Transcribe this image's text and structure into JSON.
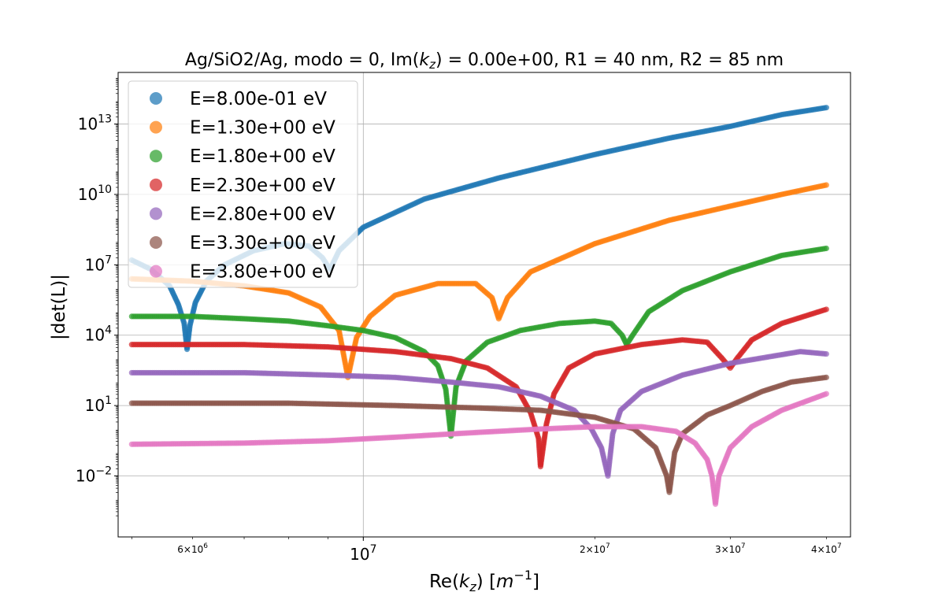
{
  "chart_data": {
    "type": "scatter",
    "title": {
      "prefix": "Ag/SiO2/Ag, modo = 0, Im(",
      "var_main": "k",
      "var_sub": "z",
      "suffix": ") = 0.00e+00, R1 = 40 nm, R2 = 85 nm"
    },
    "xlabel": {
      "prefix": "Re(",
      "var_main": "k",
      "var_sub": "z",
      "mid": ") [",
      "unit_main": "m",
      "unit_sup": "−1",
      "suffix": "]"
    },
    "ylabel": "|det(L)|",
    "xscale": "log",
    "yscale": "log",
    "xlim": [
      4800000,
      43000000
    ],
    "ylim_log10": [
      -4.6,
      15.2
    ],
    "grid": "major",
    "legend_position": "upper-left",
    "x_ticks": [
      {
        "value": 6000000,
        "mant": "6",
        "exp": "6",
        "major": false
      },
      {
        "value": 10000000,
        "mant": "",
        "exp": "7",
        "major": true
      },
      {
        "value": 20000000,
        "mant": "2",
        "exp": "7",
        "major": false
      },
      {
        "value": 30000000,
        "mant": "3",
        "exp": "7",
        "major": false
      },
      {
        "value": 40000000,
        "mant": "4",
        "exp": "7",
        "major": false
      }
    ],
    "y_ticks": [
      {
        "exp": "13",
        "log": 13
      },
      {
        "exp": "10",
        "log": 10
      },
      {
        "exp": "7",
        "log": 7
      },
      {
        "exp": "4",
        "log": 4
      },
      {
        "exp": "1",
        "log": 1
      },
      {
        "exp": "−2",
        "log": -2
      }
    ],
    "series": [
      {
        "name": "E=8.00e-01 eV",
        "color": "#1f77b4",
        "points": [
          [
            5000000,
            7.2
          ],
          [
            5300000,
            6.8
          ],
          [
            5600000,
            6.1
          ],
          [
            5750000,
            5.3
          ],
          [
            5850000,
            4.5
          ],
          [
            5900000,
            3.4
          ],
          [
            5950000,
            4.4
          ],
          [
            6050000,
            5.4
          ],
          [
            6250000,
            6.3
          ],
          [
            6600000,
            7.0
          ],
          [
            7200000,
            7.6
          ],
          [
            7900000,
            7.9
          ],
          [
            8500000,
            7.8
          ],
          [
            8850000,
            7.3
          ],
          [
            9050000,
            6.8
          ],
          [
            9300000,
            7.6
          ],
          [
            10000000,
            8.6
          ],
          [
            12000000,
            9.8
          ],
          [
            15000000,
            10.7
          ],
          [
            20000000,
            11.7
          ],
          [
            25000000,
            12.4
          ],
          [
            30000000,
            12.9
          ],
          [
            35000000,
            13.4
          ],
          [
            40000000,
            13.7
          ]
        ]
      },
      {
        "name": "E=1.30e+00 eV",
        "color": "#ff7f0e",
        "points": [
          [
            5000000,
            6.4
          ],
          [
            6000000,
            6.3
          ],
          [
            7000000,
            6.1
          ],
          [
            8000000,
            5.8
          ],
          [
            8800000,
            5.2
          ],
          [
            9300000,
            4.2
          ],
          [
            9550000,
            2.2
          ],
          [
            9800000,
            3.9
          ],
          [
            10200000,
            4.8
          ],
          [
            11000000,
            5.7
          ],
          [
            12500000,
            6.2
          ],
          [
            14000000,
            6.2
          ],
          [
            14700000,
            5.6
          ],
          [
            15000000,
            4.7
          ],
          [
            15400000,
            5.6
          ],
          [
            16500000,
            6.7
          ],
          [
            20000000,
            7.9
          ],
          [
            25000000,
            8.9
          ],
          [
            30000000,
            9.5
          ],
          [
            35000000,
            10.0
          ],
          [
            40000000,
            10.4
          ]
        ]
      },
      {
        "name": "E=1.80e+00 eV",
        "color": "#2ca02c",
        "points": [
          [
            5000000,
            4.8
          ],
          [
            6000000,
            4.8
          ],
          [
            7000000,
            4.7
          ],
          [
            8000000,
            4.6
          ],
          [
            9000000,
            4.4
          ],
          [
            10000000,
            4.2
          ],
          [
            11000000,
            3.9
          ],
          [
            12000000,
            3.3
          ],
          [
            12500000,
            2.7
          ],
          [
            12800000,
            1.7
          ],
          [
            13000000,
            -0.3
          ],
          [
            13200000,
            1.8
          ],
          [
            13600000,
            2.9
          ],
          [
            14500000,
            3.7
          ],
          [
            16000000,
            4.2
          ],
          [
            18000000,
            4.5
          ],
          [
            20000000,
            4.6
          ],
          [
            21000000,
            4.5
          ],
          [
            21700000,
            4.0
          ],
          [
            22000000,
            3.6
          ],
          [
            22400000,
            4.0
          ],
          [
            23500000,
            5.0
          ],
          [
            26000000,
            5.9
          ],
          [
            30000000,
            6.7
          ],
          [
            35000000,
            7.4
          ],
          [
            40000000,
            7.7
          ]
        ]
      },
      {
        "name": "E=2.30e+00 eV",
        "color": "#d62728",
        "points": [
          [
            5000000,
            3.6
          ],
          [
            7000000,
            3.6
          ],
          [
            9000000,
            3.5
          ],
          [
            11000000,
            3.3
          ],
          [
            13000000,
            3.0
          ],
          [
            14500000,
            2.6
          ],
          [
            15800000,
            1.8
          ],
          [
            16500000,
            0.7
          ],
          [
            16900000,
            -0.4
          ],
          [
            17000000,
            -1.6
          ],
          [
            17300000,
            0.2
          ],
          [
            17700000,
            1.5
          ],
          [
            18500000,
            2.6
          ],
          [
            20000000,
            3.2
          ],
          [
            23000000,
            3.6
          ],
          [
            26000000,
            3.8
          ],
          [
            28000000,
            3.7
          ],
          [
            29300000,
            3.0
          ],
          [
            30000000,
            2.6
          ],
          [
            30600000,
            3.0
          ],
          [
            32000000,
            3.8
          ],
          [
            35000000,
            4.5
          ],
          [
            40000000,
            5.1
          ]
        ]
      },
      {
        "name": "E=2.80e+00 eV",
        "color": "#9467bd",
        "points": [
          [
            5000000,
            2.4
          ],
          [
            7000000,
            2.4
          ],
          [
            9000000,
            2.3
          ],
          [
            11000000,
            2.2
          ],
          [
            13000000,
            2.0
          ],
          [
            15000000,
            1.8
          ],
          [
            17000000,
            1.4
          ],
          [
            18800000,
            0.8
          ],
          [
            19800000,
            0.0
          ],
          [
            20400000,
            -0.8
          ],
          [
            20800000,
            -2.0
          ],
          [
            21100000,
            -0.2
          ],
          [
            21600000,
            0.8
          ],
          [
            23000000,
            1.6
          ],
          [
            26000000,
            2.3
          ],
          [
            30000000,
            2.8
          ],
          [
            34000000,
            3.1
          ],
          [
            37000000,
            3.3
          ],
          [
            40000000,
            3.2
          ]
        ]
      },
      {
        "name": "E=3.30e+00 eV",
        "color": "#8c564b",
        "points": [
          [
            5000000,
            1.1
          ],
          [
            8000000,
            1.1
          ],
          [
            11000000,
            1.0
          ],
          [
            14000000,
            0.9
          ],
          [
            17000000,
            0.8
          ],
          [
            20000000,
            0.5
          ],
          [
            22500000,
            0.0
          ],
          [
            24000000,
            -0.8
          ],
          [
            24800000,
            -2.0
          ],
          [
            25000000,
            -2.7
          ],
          [
            25400000,
            -1.0
          ],
          [
            26000000,
            -0.2
          ],
          [
            28000000,
            0.6
          ],
          [
            30000000,
            1.0
          ],
          [
            33000000,
            1.6
          ],
          [
            36000000,
            2.0
          ],
          [
            40000000,
            2.2
          ]
        ]
      },
      {
        "name": "E=3.80e+00 eV",
        "color": "#e377c2",
        "points": [
          [
            5000000,
            -0.65
          ],
          [
            7000000,
            -0.6
          ],
          [
            9000000,
            -0.5
          ],
          [
            11000000,
            -0.35
          ],
          [
            14000000,
            -0.15
          ],
          [
            17000000,
            0.0
          ],
          [
            20000000,
            0.1
          ],
          [
            23000000,
            0.1
          ],
          [
            25500000,
            -0.1
          ],
          [
            27000000,
            -0.6
          ],
          [
            28000000,
            -1.3
          ],
          [
            28400000,
            -2.0
          ],
          [
            28700000,
            -3.2
          ],
          [
            29000000,
            -2.0
          ],
          [
            30000000,
            -0.8
          ],
          [
            32000000,
            0.1
          ],
          [
            35000000,
            0.8
          ],
          [
            40000000,
            1.5
          ]
        ]
      }
    ]
  }
}
